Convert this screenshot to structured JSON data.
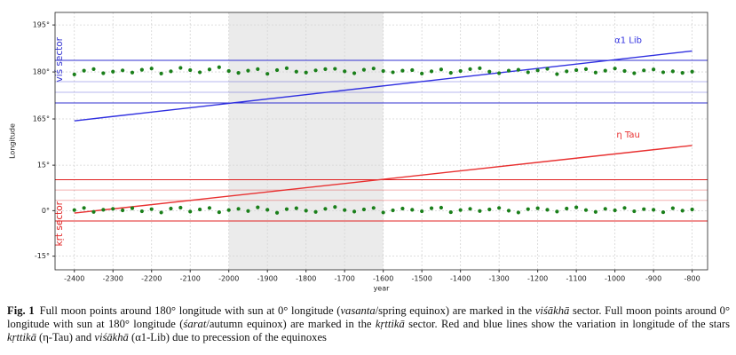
{
  "chart_data": {
    "type": "scatter",
    "xlabel": "year",
    "ylabel": "Longitude",
    "xlim": [
      -2450,
      -760
    ],
    "xticks": [
      -2400,
      -2300,
      -2200,
      -2100,
      -2000,
      -1900,
      -1800,
      -1700,
      -1600,
      -1500,
      -1400,
      -1300,
      -1200,
      -1100,
      -1000,
      -900,
      -800
    ],
    "grid": true,
    "shaded_xspan": [
      -2000,
      -1600
    ],
    "dot_color": "#1a7f1a",
    "x": [
      -2400,
      -2375,
      -2350,
      -2325,
      -2300,
      -2275,
      -2250,
      -2225,
      -2200,
      -2175,
      -2150,
      -2125,
      -2100,
      -2075,
      -2050,
      -2025,
      -2000,
      -1975,
      -1950,
      -1925,
      -1900,
      -1875,
      -1850,
      -1825,
      -1800,
      -1775,
      -1750,
      -1725,
      -1700,
      -1675,
      -1650,
      -1625,
      -1600,
      -1575,
      -1550,
      -1525,
      -1500,
      -1475,
      -1450,
      -1425,
      -1400,
      -1375,
      -1350,
      -1325,
      -1300,
      -1275,
      -1250,
      -1225,
      -1200,
      -1175,
      -1150,
      -1125,
      -1100,
      -1075,
      -1050,
      -1025,
      -1000,
      -975,
      -950,
      -925,
      -900,
      -875,
      -850,
      -825,
      -800
    ],
    "panels": [
      {
        "ylim": [
          157.5,
          199
        ],
        "yticks": [
          {
            "value": 165,
            "label": "165°"
          },
          {
            "value": 180,
            "label": "180°"
          },
          {
            "value": 195,
            "label": "195°"
          }
        ],
        "sector_label": "viś sector",
        "sector_color": "#3030d0",
        "reference_lines": [
          {
            "value": 183.7,
            "alpha": 1
          },
          {
            "value": 176.9,
            "alpha": 0.35
          },
          {
            "value": 173.5,
            "alpha": 0.35
          },
          {
            "value": 170.1,
            "alpha": 1
          }
        ],
        "line": {
          "name": "α1 Lib",
          "color": "#3030e0",
          "x": [
            -2400,
            -800
          ],
          "values": [
            164.4,
            186.7
          ]
        },
        "dots": [
          179.2,
          180.4,
          180.9,
          179.6,
          180.1,
          180.5,
          179.8,
          180.7,
          181.1,
          179.5,
          180.2,
          181.3,
          180.6,
          179.9,
          180.8,
          181.5,
          180.3,
          179.7,
          180.4,
          180.9,
          179.4,
          180.6,
          181.2,
          180.1,
          179.8,
          180.5,
          180.9,
          181.0,
          180.2,
          179.6,
          180.7,
          181.1,
          180.3,
          179.9,
          180.4,
          180.6,
          179.5,
          180.2,
          180.8,
          179.7,
          180.3,
          180.9,
          181.2,
          180.1,
          179.6,
          180.4,
          180.7,
          179.9,
          180.5,
          181.0,
          179.3,
          180.2,
          180.6,
          180.9,
          179.8,
          180.4,
          181.1,
          180.3,
          179.6,
          180.5,
          180.8,
          179.9,
          180.2,
          179.7,
          180.1
        ]
      },
      {
        "ylim": [
          -19.5,
          22.5
        ],
        "yticks": [
          {
            "value": -15,
            "label": "-15°"
          },
          {
            "value": 0,
            "label": "0°"
          },
          {
            "value": 15,
            "label": "15°"
          }
        ],
        "sector_label": "kṛt sector",
        "sector_color": "#e02020",
        "reference_lines": [
          {
            "value": 10.2,
            "alpha": 1
          },
          {
            "value": 6.8,
            "alpha": 0.35
          },
          {
            "value": 3.4,
            "alpha": 0.35
          },
          {
            "value": -3.4,
            "alpha": 1
          }
        ],
        "line": {
          "name": "η Tau",
          "color": "#e83030",
          "x": [
            -2400,
            -800
          ],
          "values": [
            -0.8,
            21.5
          ]
        },
        "dots": [
          0.2,
          0.9,
          -0.4,
          0.3,
          0.6,
          0.1,
          0.8,
          -0.2,
          0.5,
          -0.6,
          0.7,
          1.0,
          -0.3,
          0.4,
          0.9,
          -0.5,
          0.2,
          0.6,
          -0.1,
          1.1,
          0.3,
          -0.7,
          0.5,
          0.8,
          0.0,
          -0.4,
          0.6,
          1.2,
          0.2,
          -0.3,
          0.4,
          0.9,
          -0.6,
          0.1,
          0.7,
          0.3,
          -0.2,
          0.8,
          1.0,
          -0.5,
          0.2,
          0.6,
          -0.1,
          0.4,
          0.9,
          0.0,
          -0.6,
          0.5,
          0.8,
          0.3,
          -0.3,
          0.7,
          1.1,
          0.2,
          -0.4,
          0.6,
          0.1,
          0.9,
          -0.2,
          0.5,
          0.3,
          -0.5,
          0.8,
          0.0,
          0.4
        ]
      }
    ]
  },
  "caption": {
    "label": "Fig. 1",
    "segments": [
      {
        "text": "Full moon points around 180° longitude with sun at 0° longitude (",
        "italic": false
      },
      {
        "text": "vasanta",
        "italic": true
      },
      {
        "text": "/spring equinox) are marked in the ",
        "italic": false
      },
      {
        "text": "viśākhā",
        "italic": true
      },
      {
        "text": " sector. Full moon points around 0° longitude with sun at 180° longitude (",
        "italic": false
      },
      {
        "text": "śarat",
        "italic": true
      },
      {
        "text": "/autumn equinox) are marked in the ",
        "italic": false
      },
      {
        "text": "kṛttikā",
        "italic": true
      },
      {
        "text": " sector. Red and blue lines show the variation in longitude of the stars ",
        "italic": false
      },
      {
        "text": "kṛttikā",
        "italic": true
      },
      {
        "text": " (η-Tau) and ",
        "italic": false
      },
      {
        "text": "viśākhā",
        "italic": true
      },
      {
        "text": " (α1-Lib) due to precession of the equinoxes",
        "italic": false
      }
    ]
  }
}
